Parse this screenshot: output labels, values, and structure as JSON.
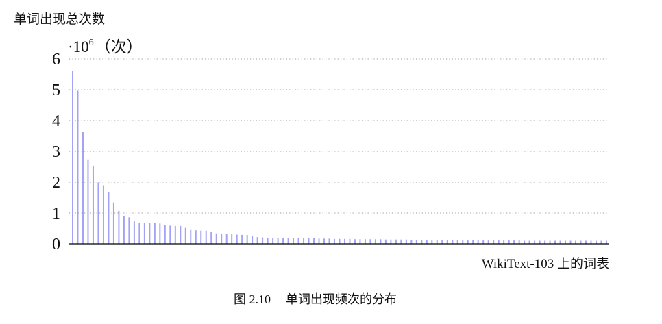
{
  "chart_data": {
    "type": "bar",
    "ylabel": "单词出现总次数",
    "unit_prefix": "·10",
    "unit_exponent": "6",
    "unit_suffix": "（次）",
    "xlabel": "WikiText-103 上的词表",
    "ylim": [
      0,
      6
    ],
    "yticks": [
      "0",
      "1",
      "2",
      "3",
      "4",
      "5",
      "6"
    ],
    "grid": true,
    "bar_color": "#a3a3f5",
    "values": [
      5.6,
      4.97,
      3.63,
      2.74,
      2.51,
      1.99,
      1.9,
      1.67,
      1.34,
      1.07,
      0.89,
      0.86,
      0.73,
      0.69,
      0.68,
      0.68,
      0.68,
      0.66,
      0.61,
      0.59,
      0.58,
      0.58,
      0.52,
      0.45,
      0.44,
      0.43,
      0.43,
      0.39,
      0.34,
      0.32,
      0.32,
      0.31,
      0.3,
      0.29,
      0.29,
      0.26,
      0.22,
      0.21,
      0.2,
      0.2,
      0.2,
      0.2,
      0.19,
      0.19,
      0.19,
      0.18,
      0.18,
      0.18,
      0.17,
      0.17,
      0.17,
      0.16,
      0.16,
      0.16,
      0.16,
      0.15,
      0.15,
      0.15,
      0.15,
      0.15,
      0.15,
      0.14,
      0.14,
      0.14,
      0.14,
      0.14,
      0.13,
      0.13,
      0.13,
      0.13,
      0.13,
      0.13,
      0.13,
      0.12,
      0.12,
      0.12,
      0.12,
      0.12,
      0.12,
      0.12,
      0.11,
      0.11,
      0.11,
      0.11,
      0.11,
      0.11,
      0.11,
      0.11,
      0.1,
      0.1,
      0.1,
      0.1,
      0.1,
      0.1,
      0.1,
      0.1,
      0.1,
      0.1,
      0.1,
      0.1,
      0.1,
      0.1,
      0.1,
      0.1,
      0.1
    ]
  },
  "caption": {
    "label": "图 2.10",
    "text": "单词出现频次的分布"
  }
}
